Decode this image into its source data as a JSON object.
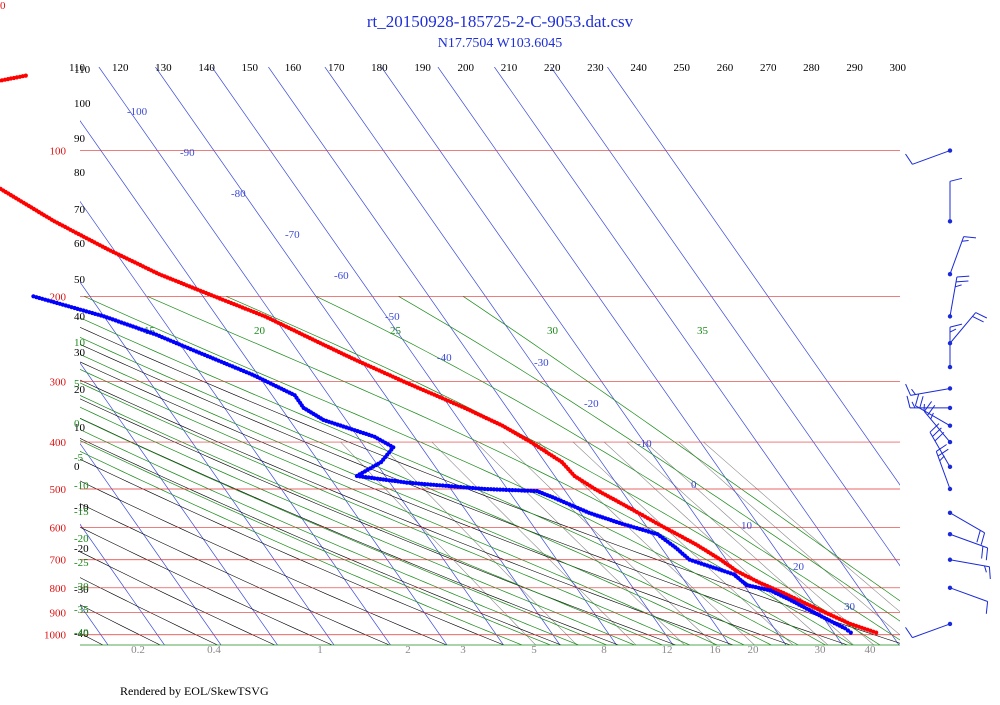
{
  "title": "rt_20150928-185725-2-C-9053.dat.csv",
  "subtitle": "N17.7504 W103.6045",
  "footer": "Rendered by EOL/SkewTSVG",
  "corner_label": "0",
  "colors": {
    "title": "#1f2fd6",
    "temperature": "#ff0000",
    "dewpoint": "#0000ff",
    "isobar": "#e03030",
    "isotherm": "#3a4ad8",
    "dry_adiabat": "#000000",
    "moist_adiabat": "#1a8a1a",
    "mixing_ratio": "#888888",
    "wind_barb": "#1a2ad8"
  },
  "chart_data": {
    "type": "skew-t",
    "title": "rt_20150928-185725-2-C-9053.dat.csv",
    "subtitle": "N17.7504 W103.6045",
    "pressure_levels_hpa": [
      100,
      200,
      300,
      400,
      500,
      600,
      700,
      800,
      900,
      1000
    ],
    "isotherm_labels_c": [
      -100,
      -90,
      -80,
      -70,
      -60,
      -50,
      -40,
      -30,
      -20,
      -10,
      0,
      10,
      20,
      30
    ],
    "theta_labels_top_k": [
      110,
      120,
      130,
      140,
      150,
      160,
      170,
      180,
      190,
      200,
      210,
      220,
      230,
      240,
      250,
      260,
      270,
      280,
      290,
      300
    ],
    "theta_labels_left_k": [
      "110",
      "100",
      "90",
      "80",
      "70",
      "60",
      "50",
      "40",
      "30",
      "20",
      "10",
      "0",
      "-10",
      "-20",
      "-30",
      "-40"
    ],
    "moist_adiabat_labels_c": [
      "10",
      "15",
      "20",
      "25",
      "30",
      "35",
      "5",
      "0",
      "-5",
      "-10",
      "-15",
      "-20",
      "-25",
      "-30",
      "-35",
      "-40"
    ],
    "mixing_ratio_labels_gkg": [
      "0.2",
      "0.4",
      "1",
      "2",
      "3",
      "5",
      "8",
      "12",
      "16",
      "20",
      "30",
      "40"
    ],
    "temperature_profile": [
      {
        "p": 990,
        "t": 27.5
      },
      {
        "p": 950,
        "t": 24.0
      },
      {
        "p": 900,
        "t": 21.0
      },
      {
        "p": 860,
        "t": 18.5
      },
      {
        "p": 820,
        "t": 16.0
      },
      {
        "p": 780,
        "t": 13.0
      },
      {
        "p": 740,
        "t": 10.5
      },
      {
        "p": 700,
        "t": 9.0
      },
      {
        "p": 650,
        "t": 6.5
      },
      {
        "p": 600,
        "t": 3.0
      },
      {
        "p": 550,
        "t": -0.5
      },
      {
        "p": 500,
        "t": -4.5
      },
      {
        "p": 470,
        "t": -6.5
      },
      {
        "p": 440,
        "t": -7.0
      },
      {
        "p": 400,
        "t": -10.0
      },
      {
        "p": 370,
        "t": -13.0
      },
      {
        "p": 340,
        "t": -17.5
      },
      {
        "p": 300,
        "t": -25.0
      },
      {
        "p": 270,
        "t": -31.0
      },
      {
        "p": 250,
        "t": -35.0
      },
      {
        "p": 220,
        "t": -41.5
      },
      {
        "p": 200,
        "t": -48.0
      },
      {
        "p": 180,
        "t": -55.0
      },
      {
        "p": 160,
        "t": -61.0
      },
      {
        "p": 140,
        "t": -67.0
      },
      {
        "p": 120,
        "t": -72.5
      },
      {
        "p": 105,
        "t": -77.0
      },
      {
        "p": 100,
        "t": -78.5
      },
      {
        "p": 96,
        "t": -78.0
      },
      {
        "p": 90,
        "t": -74.0
      },
      {
        "p": 85,
        "t": -68.0
      },
      {
        "p": 80,
        "t": -66.5
      },
      {
        "p": 76,
        "t": -68.0
      },
      {
        "p": 74,
        "t": -65.0
      },
      {
        "p": 72,
        "t": -60.0
      },
      {
        "p": 70,
        "t": -54.0
      }
    ],
    "dewpoint_profile": [
      {
        "p": 990,
        "td": 23.0
      },
      {
        "p": 970,
        "td": 22.5
      },
      {
        "p": 940,
        "td": 21.0
      },
      {
        "p": 900,
        "td": 19.0
      },
      {
        "p": 850,
        "td": 16.5
      },
      {
        "p": 810,
        "td": 14.0
      },
      {
        "p": 790,
        "td": 10.5
      },
      {
        "p": 770,
        "td": 10.0
      },
      {
        "p": 750,
        "td": 9.5
      },
      {
        "p": 700,
        "td": 3.5
      },
      {
        "p": 660,
        "td": 2.5
      },
      {
        "p": 620,
        "td": 1.0
      },
      {
        "p": 590,
        "td": -4.0
      },
      {
        "p": 560,
        "td": -8.5
      },
      {
        "p": 520,
        "td": -13.0
      },
      {
        "p": 505,
        "td": -15.0
      },
      {
        "p": 500,
        "td": -24.0
      },
      {
        "p": 485,
        "td": -37.0
      },
      {
        "p": 470,
        "td": -45.0
      },
      {
        "p": 440,
        "td": -39.0
      },
      {
        "p": 410,
        "td": -35.0
      },
      {
        "p": 390,
        "td": -37.0
      },
      {
        "p": 360,
        "td": -44.0
      },
      {
        "p": 340,
        "td": -46.0
      },
      {
        "p": 320,
        "td": -46.0
      },
      {
        "p": 290,
        "td": -51.0
      },
      {
        "p": 260,
        "td": -58.0
      },
      {
        "p": 240,
        "td": -63.0
      },
      {
        "p": 220,
        "td": -70.0
      },
      {
        "p": 200,
        "td": -80.0
      }
    ],
    "wind_barbs": [
      {
        "p": 100,
        "speed_kt": 10,
        "dir_deg": 250
      },
      {
        "p": 140,
        "speed_kt": 10,
        "dir_deg": 0
      },
      {
        "p": 180,
        "speed_kt": 15,
        "dir_deg": 20
      },
      {
        "p": 220,
        "speed_kt": 25,
        "dir_deg": 10
      },
      {
        "p": 250,
        "speed_kt": 20,
        "dir_deg": 40
      },
      {
        "p": 280,
        "speed_kt": 15,
        "dir_deg": 0
      },
      {
        "p": 310,
        "speed_kt": 15,
        "dir_deg": 260
      },
      {
        "p": 340,
        "speed_kt": 15,
        "dir_deg": 270
      },
      {
        "p": 370,
        "speed_kt": 25,
        "dir_deg": 300
      },
      {
        "p": 400,
        "speed_kt": 25,
        "dir_deg": 320
      },
      {
        "p": 450,
        "speed_kt": 30,
        "dir_deg": 330
      },
      {
        "p": 500,
        "speed_kt": 25,
        "dir_deg": 340
      },
      {
        "p": 560,
        "speed_kt": 20,
        "dir_deg": 120
      },
      {
        "p": 620,
        "speed_kt": 20,
        "dir_deg": 110
      },
      {
        "p": 700,
        "speed_kt": 15,
        "dir_deg": 100
      },
      {
        "p": 800,
        "speed_kt": 10,
        "dir_deg": 110
      },
      {
        "p": 950,
        "speed_kt": 10,
        "dir_deg": 250
      }
    ]
  }
}
